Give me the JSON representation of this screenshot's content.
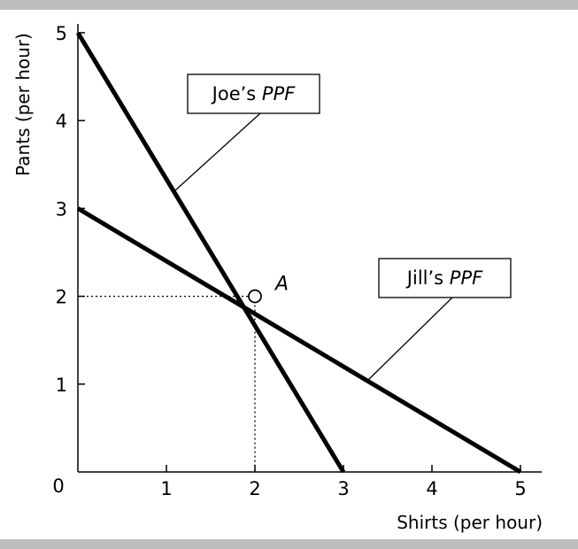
{
  "chart_data": {
    "type": "line",
    "xlabel": "Shirts (per hour)",
    "ylabel": "Pants (per hour)",
    "xlim": [
      0,
      5
    ],
    "ylim": [
      0,
      5
    ],
    "x_ticks": [
      1,
      2,
      3,
      4,
      5
    ],
    "y_ticks": [
      1,
      2,
      3,
      4,
      5
    ],
    "origin_label": "0",
    "grid": false,
    "series": [
      {
        "name": "Joe's PPF",
        "owner": "Joe’s",
        "suffix": "PPF",
        "points": [
          [
            0,
            5
          ],
          [
            3,
            0
          ]
        ]
      },
      {
        "name": "Jill's PPF",
        "owner": "Jill’s",
        "suffix": "PPF",
        "points": [
          [
            0,
            3
          ],
          [
            5,
            0
          ]
        ]
      }
    ],
    "annotations": [
      {
        "label": "A",
        "x": 2,
        "y": 2,
        "marker": "open-circle",
        "dotted_guides": true
      }
    ],
    "colors": {
      "line": "#000000",
      "band": "#bdbdbd",
      "background": "#ffffff"
    }
  }
}
